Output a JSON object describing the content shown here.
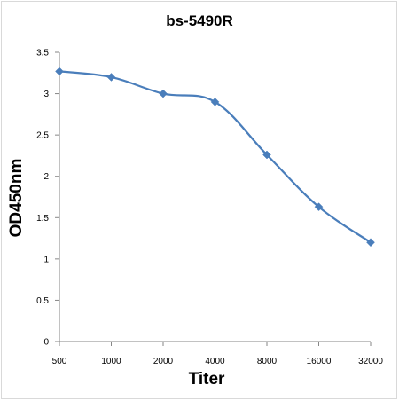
{
  "chart_data": {
    "type": "line",
    "title": "bs-5490R",
    "xlabel": "Titer",
    "ylabel": "OD450nm",
    "categories": [
      "500",
      "1000",
      "2000",
      "4000",
      "8000",
      "16000",
      "32000"
    ],
    "series": [
      {
        "values": [
          3.27,
          3.2,
          3.0,
          2.9,
          2.26,
          1.63,
          1.2
        ]
      }
    ],
    "yticks": [
      "0",
      "0.5",
      "1",
      "1.5",
      "2",
      "2.5",
      "3",
      "3.5"
    ],
    "ylim": [
      0,
      3.5
    ],
    "grid": false,
    "legend": "none",
    "marker": "diamond",
    "line_style": "smooth",
    "colors": {
      "series": "#4a7ebb",
      "axis": "#868686"
    }
  }
}
